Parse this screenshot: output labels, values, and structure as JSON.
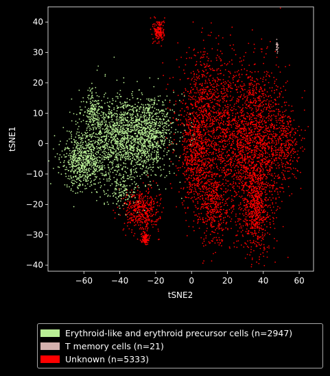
{
  "chart_data": {
    "type": "scatter",
    "xlabel": "tSNE2",
    "ylabel": "tSNE1",
    "xlim": [
      -80,
      68
    ],
    "ylim": [
      -42,
      45
    ],
    "xticks": [
      -60,
      -40,
      -20,
      0,
      20,
      40,
      60
    ],
    "yticks": [
      -40,
      -30,
      -20,
      -10,
      0,
      10,
      20,
      30,
      40
    ],
    "grid": false,
    "legend_position": "below",
    "series": [
      {
        "name": "Erythroid-like and erythroid precursor cells (n=2947)",
        "color": "#b9ee95",
        "n": 2947,
        "clusters": [
          {
            "cx": -38,
            "cy": 2,
            "sx": 12,
            "sy": 7,
            "w": 0.55
          },
          {
            "cx": -60,
            "cy": -6,
            "sx": 6,
            "sy": 4.5,
            "w": 0.22
          },
          {
            "cx": -22,
            "cy": 4,
            "sx": 6,
            "sy": 5,
            "w": 0.15
          },
          {
            "cx": -55,
            "cy": 11,
            "sx": 2,
            "sy": 3,
            "w": 0.04
          },
          {
            "cx": -38,
            "cy": -16,
            "sx": 4,
            "sy": 3,
            "w": 0.04
          }
        ]
      },
      {
        "name": "T memory cells (n=21)",
        "color": "#d4b1ae",
        "n": 21,
        "clusters": [
          {
            "cx": 47.5,
            "cy": 32,
            "sx": 0.6,
            "sy": 1.2,
            "w": 1.0
          }
        ]
      },
      {
        "name": "Unknown (n=5333)",
        "color": "#ff0000",
        "n": 5333,
        "clusters": [
          {
            "cx": 33,
            "cy": 0,
            "sx": 10,
            "sy": 13,
            "w": 0.38
          },
          {
            "cx": 36,
            "cy": -22,
            "sx": 4,
            "sy": 7,
            "w": 0.1
          },
          {
            "cx": 8,
            "cy": 10,
            "sx": 8,
            "sy": 10,
            "w": 0.16
          },
          {
            "cx": 12,
            "cy": -20,
            "sx": 4,
            "sy": 7,
            "w": 0.08
          },
          {
            "cx": 2,
            "cy": -5,
            "sx": 4,
            "sy": 8,
            "w": 0.1
          },
          {
            "cx": -28,
            "cy": -22,
            "sx": 5,
            "sy": 3.5,
            "w": 0.08
          },
          {
            "cx": -18,
            "cy": 37,
            "sx": 1.5,
            "sy": 2,
            "w": 0.03
          },
          {
            "cx": 52,
            "cy": 0,
            "sx": 4,
            "sy": 6,
            "w": 0.05
          },
          {
            "cx": -26,
            "cy": -31,
            "sx": 1,
            "sy": 1,
            "w": 0.02
          }
        ]
      }
    ]
  }
}
